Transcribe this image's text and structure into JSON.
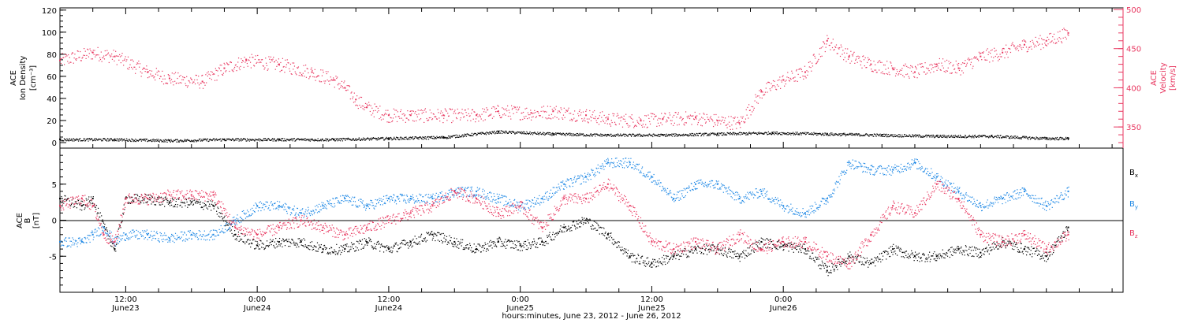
{
  "chart_data": [
    {
      "type": "scatter",
      "title": "",
      "ylabel_lines": [
        "ACE",
        "Ion Density",
        "[cm⁻³]"
      ],
      "y2label_lines": [
        "ACE",
        "Velocity",
        "[km/s]"
      ],
      "xlim_hours": [
        0,
        97
      ],
      "ylim": [
        -5,
        122
      ],
      "y_ticks": [
        0,
        20,
        40,
        60,
        80,
        100,
        120
      ],
      "y2lim": [
        323,
        502
      ],
      "y2_ticks": [
        350,
        400,
        450,
        500
      ],
      "series": [
        {
          "name": "",
          "axis": "left",
          "color": "#000000",
          "values_note": "",
          "x": [
            0,
            5,
            10,
            15,
            20,
            25,
            30,
            35,
            40,
            45,
            50,
            55,
            60,
            65,
            70,
            75,
            80,
            85,
            90,
            92
          ],
          "y": [
            3,
            3,
            2,
            3,
            3,
            3,
            4,
            5,
            10,
            8,
            7,
            7,
            8,
            9,
            8,
            7,
            6,
            6,
            4,
            4
          ]
        },
        {
          "name": "",
          "axis": "right",
          "color": "#e8365f",
          "x": [
            0,
            3,
            5,
            8,
            10,
            13,
            15,
            17,
            20,
            23,
            25,
            26,
            27,
            28,
            30,
            32,
            35,
            38,
            40,
            43,
            45,
            48,
            50,
            53,
            55,
            58,
            60,
            62,
            64,
            66,
            68,
            70,
            72,
            74,
            76,
            78,
            80,
            82,
            84,
            86,
            88,
            90,
            92
          ],
          "y": [
            435,
            445,
            440,
            420,
            412,
            408,
            425,
            435,
            430,
            420,
            410,
            400,
            385,
            375,
            365,
            365,
            365,
            365,
            370,
            368,
            370,
            365,
            360,
            358,
            360,
            362,
            358,
            355,
            395,
            410,
            420,
            460,
            440,
            430,
            425,
            420,
            430,
            425,
            440,
            445,
            455,
            460,
            470
          ]
        }
      ]
    },
    {
      "type": "scatter",
      "title": "",
      "ylabel_lines": [
        "ACE",
        "B",
        "[nT]"
      ],
      "xlim_hours": [
        0,
        97
      ],
      "ylim": [
        -10,
        10
      ],
      "y_ticks": [
        -5,
        0,
        5
      ],
      "zero_line": true,
      "legend": [
        "Bx",
        "By",
        "Bz"
      ],
      "series": [
        {
          "name": "Bx",
          "color": "#000000",
          "x": [
            0,
            2,
            3,
            4,
            5,
            6,
            8,
            10,
            12,
            14,
            16,
            18,
            20,
            22,
            24,
            26,
            28,
            30,
            32,
            34,
            36,
            38,
            40,
            42,
            44,
            46,
            48,
            50,
            52,
            54,
            56,
            58,
            60,
            62,
            64,
            66,
            68,
            70,
            72,
            74,
            76,
            78,
            80,
            82,
            84,
            86,
            88,
            90,
            92
          ],
          "y": [
            3,
            2,
            3,
            -1,
            -4,
            3,
            3,
            2.5,
            2.5,
            2,
            -2,
            -3.5,
            -3,
            -3,
            -4,
            -4,
            -3,
            -4,
            -3,
            -2,
            -3,
            -4,
            -3,
            -3.5,
            -3,
            -1,
            0,
            -2,
            -5,
            -6,
            -5,
            -4,
            -4,
            -5,
            -3,
            -3.5,
            -4,
            -7,
            -5,
            -6,
            -4,
            -5,
            -5,
            -4,
            -4.5,
            -3,
            -4,
            -5,
            -1
          ]
        },
        {
          "name": "By",
          "color": "#1e88e5",
          "x": [
            0,
            2,
            3,
            4,
            5,
            6,
            8,
            10,
            12,
            14,
            16,
            18,
            20,
            22,
            24,
            26,
            28,
            30,
            32,
            34,
            36,
            38,
            40,
            42,
            44,
            46,
            48,
            50,
            52,
            54,
            56,
            58,
            60,
            62,
            64,
            66,
            68,
            70,
            72,
            74,
            76,
            78,
            80,
            82,
            84,
            86,
            88,
            90,
            92
          ],
          "y": [
            -3,
            -3,
            -2,
            -1,
            -3,
            -2,
            -2,
            -2.5,
            -2,
            -2,
            0,
            2,
            2,
            1,
            2,
            3,
            2,
            3,
            3,
            3,
            4,
            4,
            3,
            2,
            3,
            5,
            6,
            8,
            8,
            6,
            3,
            5,
            5,
            3,
            4,
            2,
            1,
            3,
            8,
            7,
            7,
            8,
            6,
            4,
            2,
            3,
            4,
            2,
            4
          ]
        },
        {
          "name": "Bz",
          "color": "#e8365f",
          "x": [
            0,
            2,
            3,
            4,
            5,
            6,
            8,
            10,
            12,
            14,
            16,
            18,
            20,
            22,
            24,
            26,
            28,
            30,
            32,
            34,
            36,
            38,
            40,
            42,
            44,
            46,
            48,
            50,
            52,
            54,
            56,
            58,
            60,
            62,
            64,
            66,
            68,
            70,
            72,
            74,
            76,
            78,
            80,
            82,
            84,
            86,
            88,
            90,
            92
          ],
          "y": [
            2,
            3,
            2,
            -2,
            -3,
            3,
            3,
            3.5,
            3.5,
            3.5,
            -1,
            -2,
            -1,
            0,
            -1,
            -2,
            -1,
            0,
            1,
            2,
            4,
            3,
            1,
            2,
            -1,
            3,
            3,
            5,
            2,
            -3,
            -4,
            -3,
            -4,
            -2,
            -4,
            -3,
            -3,
            -5,
            -6,
            -2,
            2,
            1,
            5,
            3,
            -2,
            -3,
            -2,
            -4,
            -2
          ]
        }
      ]
    }
  ],
  "legend_labels": {
    "bx_main": "B",
    "bx_sub": "x",
    "by_main": "B",
    "by_sub": "y",
    "bz_main": "B",
    "bz_sub": "z"
  },
  "x_axis": {
    "ticks": [
      {
        "h": 6,
        "time": "12:00",
        "date": "June23"
      },
      {
        "h": 18,
        "time": "0:00",
        "date": "June24"
      },
      {
        "h": 30,
        "time": "12:00",
        "date": "June24"
      },
      {
        "h": 42,
        "time": "0:00",
        "date": "June25"
      },
      {
        "h": 54,
        "time": "12:00",
        "date": "June25"
      },
      {
        "h": 66,
        "time": "0:00",
        "date": "June26"
      }
    ],
    "title": "hours:minutes, June 23, 2012 - June 26, 2012"
  },
  "colors": {
    "pink": "#e8365f",
    "blue": "#1e88e5",
    "black": "#000000"
  }
}
